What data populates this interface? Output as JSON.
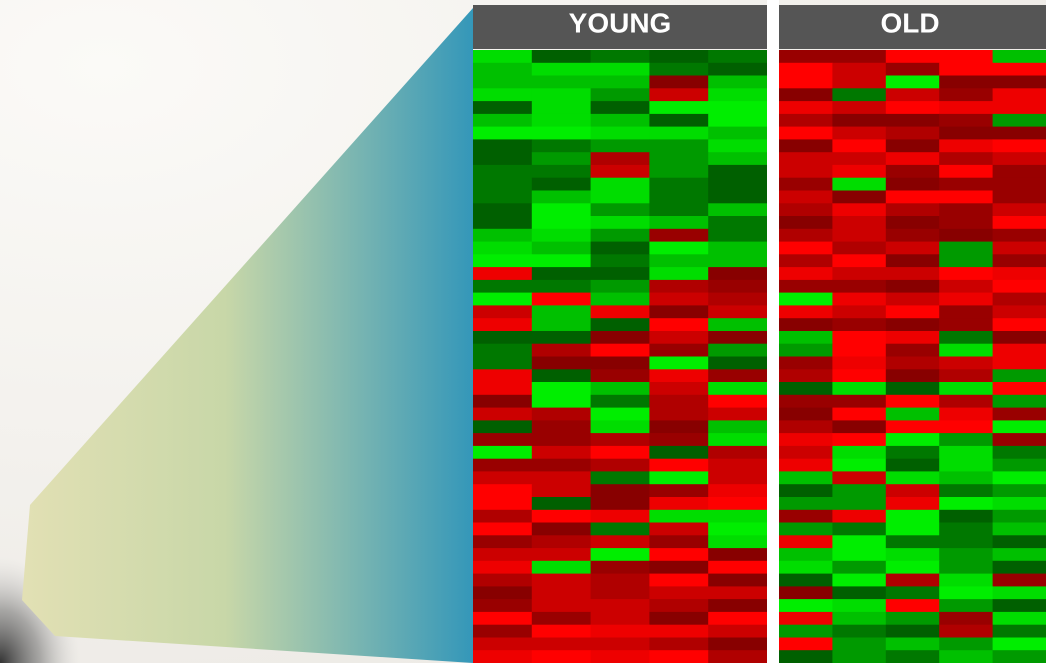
{
  "panels": [
    {
      "title": "YOUNG"
    },
    {
      "title": "OLD"
    }
  ]
}
